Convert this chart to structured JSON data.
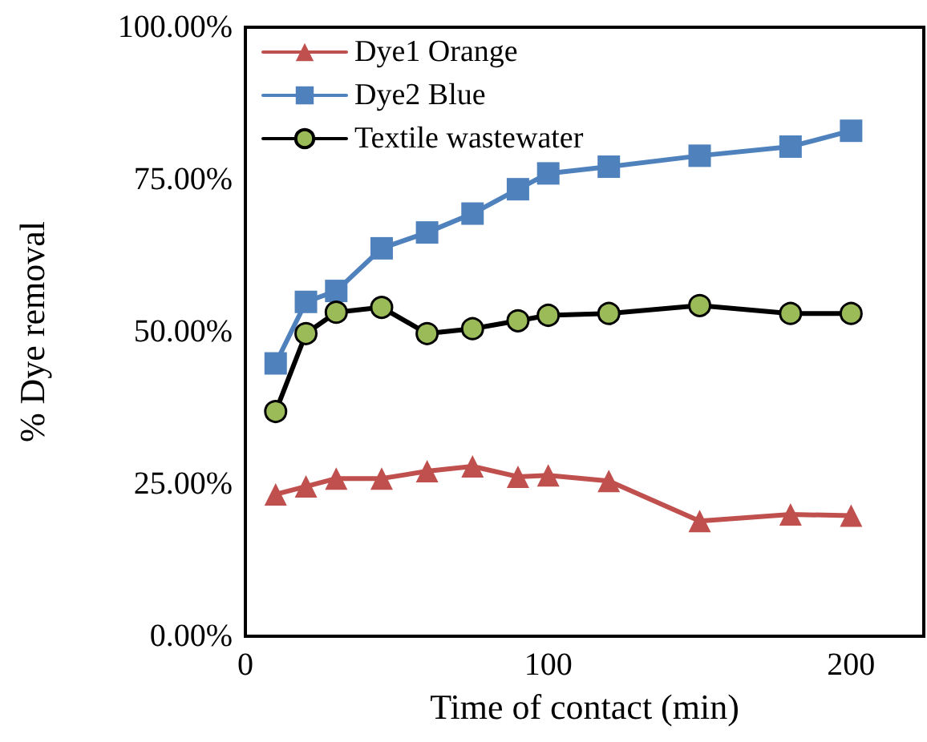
{
  "chart_data": {
    "type": "line",
    "xlabel": "Time of contact (min)",
    "ylabel": "% Dye removal",
    "x": [
      10,
      20,
      30,
      45,
      60,
      75,
      90,
      100,
      120,
      150,
      180,
      200
    ],
    "series": [
      {
        "name": "Dye1 Orange",
        "color": "#c0504d",
        "marker": "triangle",
        "values": [
          23.3,
          24.6,
          25.9,
          25.9,
          27.1,
          27.9,
          26.2,
          26.4,
          25.5,
          18.9,
          20.0,
          19.8
        ]
      },
      {
        "name": "Dye2 Blue",
        "color": "#4f81bd",
        "marker": "square",
        "values": [
          44.8,
          54.9,
          56.7,
          63.7,
          66.3,
          69.4,
          73.4,
          76.0,
          77.1,
          78.9,
          80.4,
          83.0
        ]
      },
      {
        "name": "Textile wastewater",
        "color": "#000000",
        "marker": "circle",
        "values": [
          36.9,
          49.7,
          53.2,
          54.0,
          49.7,
          50.5,
          51.8,
          52.7,
          53.0,
          54.3,
          53.0,
          53.0
        ]
      }
    ],
    "xlim": [
      0,
      224
    ],
    "xticks": [
      0,
      100,
      200
    ],
    "ylim": [
      0,
      100
    ],
    "yticks": [
      {
        "value": 0,
        "label": "0.00%"
      },
      {
        "value": 25,
        "label": "25.00%"
      },
      {
        "value": 50,
        "label": "50.00%"
      },
      {
        "value": 75,
        "label": "75.00%"
      },
      {
        "value": 100,
        "label": "100.00%"
      }
    ],
    "grid": false,
    "legend": "top left",
    "line_style": "solid"
  }
}
